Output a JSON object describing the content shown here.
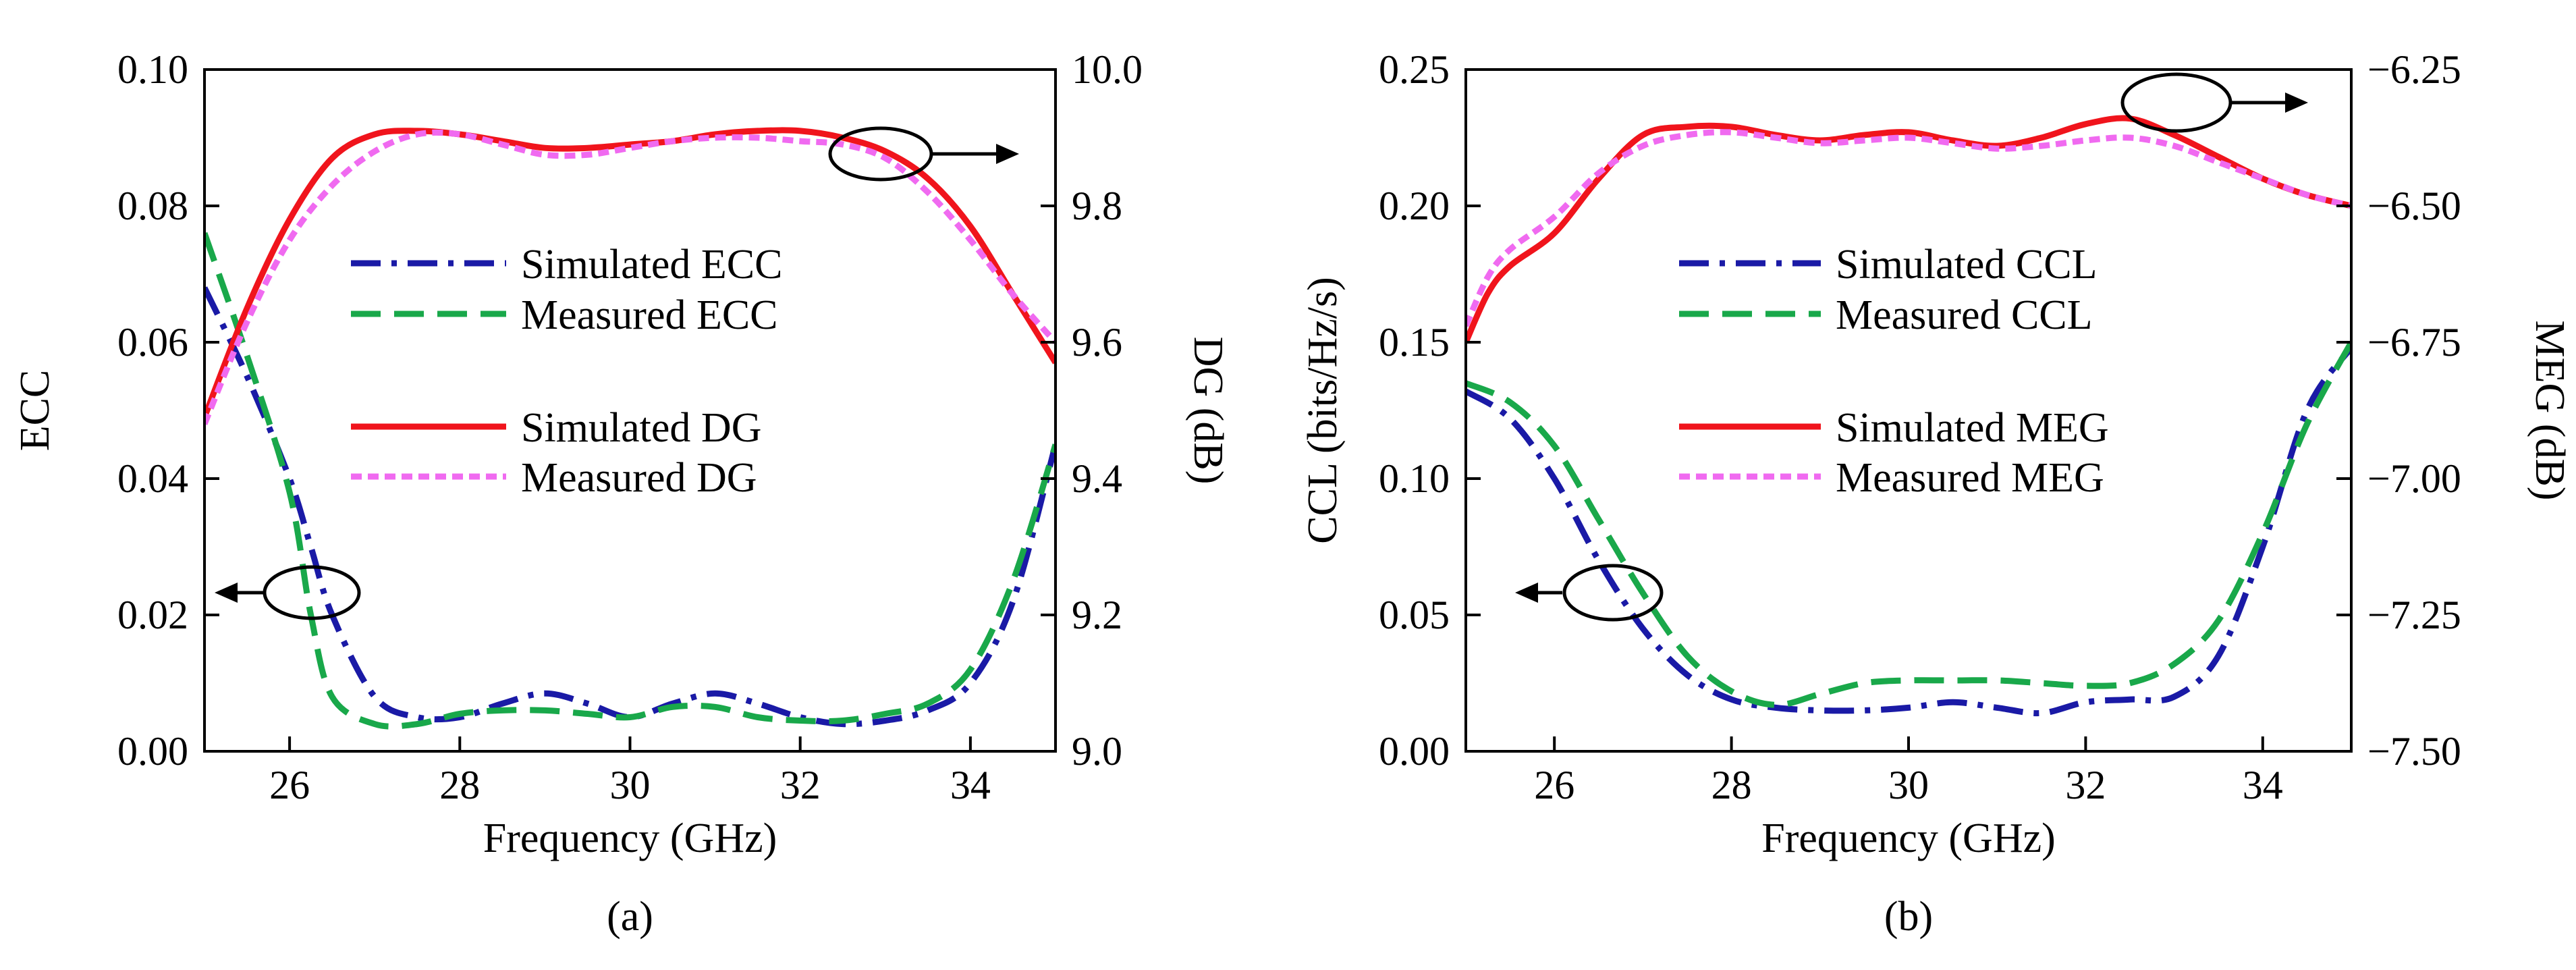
{
  "colors": {
    "sim_ecc": "#1a1aa6",
    "meas_ecc": "#19a84a",
    "sim_dg": "#f0141c",
    "meas_dg": "#f06af0"
  },
  "chart_data": [
    {
      "type": "line",
      "caption": "(a)",
      "xlabel": "Frequency (GHz)",
      "ylabel": "ECC",
      "y2label": "DG (dB)",
      "xlim": [
        25,
        35
      ],
      "ylim": [
        0,
        0.1
      ],
      "y2lim": [
        9.0,
        10.0
      ],
      "xticks": [
        "26",
        "28",
        "30",
        "32",
        "34"
      ],
      "yticks": [
        "0.00",
        "0.02",
        "0.04",
        "0.06",
        "0.08",
        "0.10"
      ],
      "y2ticks": [
        "9.0",
        "9.2",
        "9.4",
        "9.6",
        "9.8",
        "10.0"
      ],
      "series": [
        {
          "name": "Simulated ECC",
          "axis": "left",
          "style": "dashdot",
          "color": "#1a1aa6",
          "x": [
            25,
            25.5,
            26,
            26.25,
            26.5,
            27,
            27.5,
            28,
            28.5,
            29,
            29.5,
            30,
            30.5,
            31,
            31.5,
            32,
            32.5,
            33,
            33.5,
            34,
            34.5,
            35
          ],
          "y": [
            0.068,
            0.055,
            0.04,
            0.03,
            0.02,
            0.008,
            0.005,
            0.005,
            0.007,
            0.0085,
            0.007,
            0.005,
            0.007,
            0.0085,
            0.007,
            0.005,
            0.004,
            0.0045,
            0.006,
            0.01,
            0.022,
            0.045
          ]
        },
        {
          "name": "Measured ECC",
          "axis": "left",
          "style": "dashed",
          "color": "#19a84a",
          "x": [
            25,
            25.5,
            26,
            26.25,
            26.5,
            27,
            27.5,
            28,
            28.5,
            29,
            29.5,
            30,
            30.5,
            31,
            31.5,
            32,
            32.5,
            33,
            33.5,
            34,
            34.5,
            35
          ],
          "y": [
            0.076,
            0.058,
            0.038,
            0.02,
            0.008,
            0.004,
            0.004,
            0.0055,
            0.006,
            0.006,
            0.0055,
            0.005,
            0.0065,
            0.0065,
            0.005,
            0.0045,
            0.0045,
            0.0055,
            0.007,
            0.012,
            0.025,
            0.045
          ]
        },
        {
          "name": "Simulated DG",
          "axis": "right",
          "style": "solid",
          "color": "#f0141c",
          "x": [
            25,
            25.5,
            26,
            26.5,
            27,
            27.5,
            28,
            28.5,
            29,
            29.5,
            30,
            30.5,
            31,
            31.5,
            32,
            32.5,
            33,
            33.5,
            34,
            34.5,
            35
          ],
          "y": [
            9.49,
            9.65,
            9.78,
            9.87,
            9.905,
            9.91,
            9.905,
            9.895,
            9.885,
            9.885,
            9.89,
            9.895,
            9.905,
            9.91,
            9.91,
            9.9,
            9.88,
            9.84,
            9.77,
            9.67,
            9.57
          ]
        },
        {
          "name": "Measured DG",
          "axis": "right",
          "style": "dotted",
          "color": "#f06af0",
          "x": [
            25,
            25.5,
            26,
            26.5,
            27,
            27.5,
            28,
            28.5,
            29,
            29.5,
            30,
            30.5,
            31,
            31.5,
            32,
            32.5,
            33,
            33.5,
            34,
            34.5,
            35
          ],
          "y": [
            9.48,
            9.63,
            9.75,
            9.83,
            9.88,
            9.905,
            9.905,
            9.89,
            9.875,
            9.875,
            9.885,
            9.895,
            9.9,
            9.9,
            9.895,
            9.89,
            9.87,
            9.82,
            9.75,
            9.67,
            9.6
          ]
        }
      ]
    },
    {
      "type": "line",
      "caption": "(b)",
      "xlabel": "Frequency (GHz)",
      "ylabel": "CCL (bits/Hz/s)",
      "y2label": "MEG (dB)",
      "xlim": [
        25,
        35
      ],
      "ylim": [
        0,
        0.25
      ],
      "y2lim": [
        -7.5,
        -6.25
      ],
      "xticks": [
        "26",
        "28",
        "30",
        "32",
        "34"
      ],
      "yticks": [
        "0.00",
        "0.05",
        "0.10",
        "0.15",
        "0.20",
        "0.25"
      ],
      "y2ticks": [
        "−7.50",
        "−7.25",
        "−7.00",
        "−6.75",
        "−6.50",
        "−6.25"
      ],
      "series": [
        {
          "name": "Simulated CCL",
          "axis": "left",
          "style": "dashdot",
          "color": "#1a1aa6",
          "x": [
            25,
            25.5,
            26,
            26.5,
            27,
            27.5,
            28,
            28.5,
            29,
            29.5,
            30,
            30.5,
            31,
            31.5,
            32,
            32.5,
            33,
            33.5,
            34,
            34.5,
            35
          ],
          "y": [
            0.132,
            0.122,
            0.1,
            0.07,
            0.045,
            0.028,
            0.019,
            0.016,
            0.015,
            0.015,
            0.016,
            0.018,
            0.016,
            0.014,
            0.018,
            0.019,
            0.02,
            0.035,
            0.075,
            0.125,
            0.148
          ]
        },
        {
          "name": "Measured CCL",
          "axis": "left",
          "style": "dashed",
          "color": "#19a84a",
          "x": [
            25,
            25.5,
            26,
            26.5,
            27,
            27.5,
            28,
            28.5,
            29,
            29.5,
            30,
            30.5,
            31,
            31.5,
            32,
            32.5,
            33,
            33.5,
            34,
            34.5,
            35
          ],
          "y": [
            0.135,
            0.128,
            0.112,
            0.085,
            0.058,
            0.035,
            0.022,
            0.017,
            0.021,
            0.025,
            0.026,
            0.026,
            0.026,
            0.025,
            0.024,
            0.025,
            0.032,
            0.048,
            0.08,
            0.12,
            0.15
          ]
        },
        {
          "name": "Simulated MEG",
          "axis": "right",
          "style": "solid",
          "color": "#f0141c",
          "x": [
            25,
            25.25,
            25.5,
            26,
            26.5,
            27,
            27.5,
            28,
            28.5,
            29,
            29.5,
            30,
            30.5,
            31,
            31.5,
            32,
            32.5,
            33,
            33.5,
            34,
            34.5,
            35
          ],
          "y": [
            -6.75,
            -6.66,
            -6.61,
            -6.55,
            -6.45,
            -6.37,
            -6.355,
            -6.355,
            -6.37,
            -6.38,
            -6.37,
            -6.365,
            -6.38,
            -6.39,
            -6.375,
            -6.35,
            -6.34,
            -6.37,
            -6.41,
            -6.45,
            -6.48,
            -6.5
          ]
        },
        {
          "name": "Measured MEG",
          "axis": "right",
          "style": "dotted",
          "color": "#f06af0",
          "x": [
            25,
            25.25,
            25.5,
            26,
            26.5,
            27,
            27.5,
            28,
            28.5,
            29,
            29.5,
            30,
            30.5,
            31,
            31.5,
            32,
            32.5,
            33,
            33.5,
            34,
            34.5,
            35
          ],
          "y": [
            -6.72,
            -6.63,
            -6.58,
            -6.52,
            -6.44,
            -6.39,
            -6.37,
            -6.365,
            -6.375,
            -6.385,
            -6.38,
            -6.375,
            -6.385,
            -6.395,
            -6.39,
            -6.38,
            -6.375,
            -6.39,
            -6.42,
            -6.45,
            -6.48,
            -6.5
          ]
        }
      ]
    }
  ]
}
